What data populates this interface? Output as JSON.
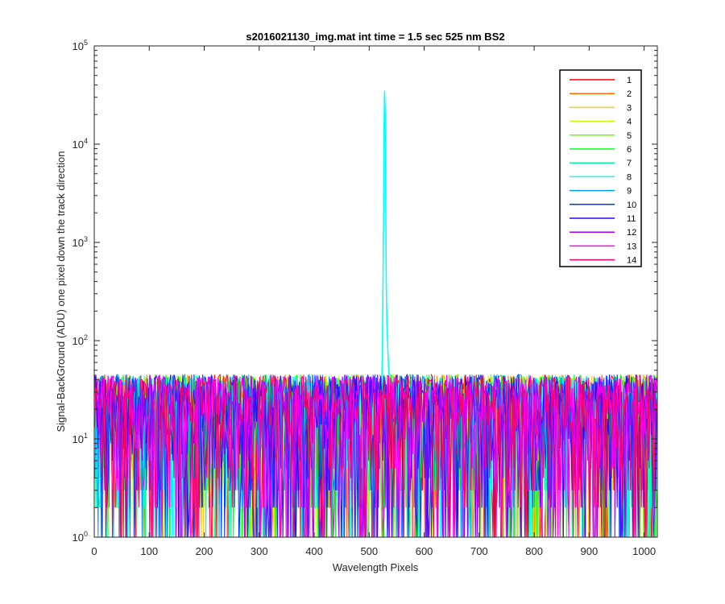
{
  "chart_data": {
    "type": "line",
    "title": "s2016021130_img.mat int time = 1.5 sec  525 nm BS2",
    "xlabel": "Wavelength Pixels",
    "ylabel": "Signal-BackGround (ADU) one pixel down the track direction",
    "xlim": [
      0,
      1024
    ],
    "ylim": [
      1,
      100000
    ],
    "yscale": "log",
    "grid": false,
    "legend_position": "top-right",
    "x_ticks": [
      "0",
      "100",
      "200",
      "300",
      "400",
      "500",
      "600",
      "700",
      "800",
      "900",
      "1000"
    ],
    "y_ticks": [
      {
        "base": "10",
        "exp": "0",
        "value": 1
      },
      {
        "base": "10",
        "exp": "1",
        "value": 10
      },
      {
        "base": "10",
        "exp": "2",
        "value": 100
      },
      {
        "base": "10",
        "exp": "3",
        "value": 1000
      },
      {
        "base": "10",
        "exp": "4",
        "value": 10000
      },
      {
        "base": "10",
        "exp": "5",
        "value": 100000
      }
    ],
    "noise": {
      "typical_range": [
        1,
        45
      ],
      "description_values": "random per-pixel noise for all tracks"
    },
    "peak": {
      "series": "8",
      "x_center": 528,
      "y_max": 35000,
      "profile_x": [
        522,
        524,
        526,
        527,
        528,
        529,
        530,
        531,
        532,
        534,
        536,
        540
      ],
      "profile_y": [
        20,
        80,
        1500,
        15000,
        35000,
        22000,
        3000,
        400,
        150,
        80,
        40,
        25
      ]
    },
    "series": [
      {
        "name": "1",
        "color": "#ff0000"
      },
      {
        "name": "2",
        "color": "#ff6e00"
      },
      {
        "name": "3",
        "color": "#ffcc00"
      },
      {
        "name": "4",
        "color": "#c8ff00"
      },
      {
        "name": "5",
        "color": "#66ff00"
      },
      {
        "name": "6",
        "color": "#00ff19"
      },
      {
        "name": "7",
        "color": "#00ff99"
      },
      {
        "name": "8",
        "color": "#00ffff"
      },
      {
        "name": "9",
        "color": "#0099ff"
      },
      {
        "name": "10",
        "color": "#0033ff"
      },
      {
        "name": "11",
        "color": "#3300ff"
      },
      {
        "name": "12",
        "color": "#9900ff"
      },
      {
        "name": "13",
        "color": "#ff00ff"
      },
      {
        "name": "14",
        "color": "#ff0066"
      }
    ]
  }
}
